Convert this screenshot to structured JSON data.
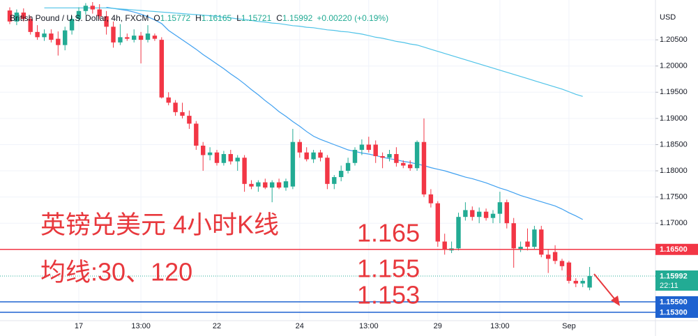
{
  "chart_data": {
    "type": "candlestick",
    "symbol": "British Pound / U.S. Dollar, 4h, FXCM",
    "ohlc_header_labels": [
      "O",
      "H",
      "L",
      "C"
    ],
    "change": "+0.00220 (+0.19%)",
    "currency": "USD",
    "categories": [
      null,
      null,
      null,
      null,
      null,
      null,
      null,
      null,
      null,
      null,
      "17",
      null,
      null,
      null,
      null,
      null,
      null,
      null,
      null,
      "13:00",
      null,
      null,
      null,
      null,
      null,
      null,
      null,
      null,
      null,
      null,
      "22",
      null,
      null,
      null,
      null,
      null,
      null,
      null,
      null,
      null,
      null,
      null,
      "24",
      null,
      null,
      null,
      null,
      null,
      null,
      null,
      null,
      null,
      "13:00",
      null,
      null,
      null,
      null,
      null,
      null,
      null,
      null,
      null,
      "29",
      null,
      null,
      null,
      null,
      null,
      null,
      null,
      null,
      "13:00",
      null,
      null,
      null,
      null,
      null,
      null,
      null,
      null,
      null,
      "Sep",
      null,
      null,
      null
    ],
    "ohlc": [
      [
        1.2106,
        1.2112,
        1.208,
        1.2085
      ],
      [
        1.2085,
        1.2108,
        1.2078,
        1.2102
      ],
      [
        1.2102,
        1.211,
        1.2085,
        1.209
      ],
      [
        1.209,
        1.2095,
        1.206,
        1.2065
      ],
      [
        1.2065,
        1.2078,
        1.205,
        1.2055
      ],
      [
        1.2055,
        1.207,
        1.2048,
        1.2062
      ],
      [
        1.2062,
        1.207,
        1.2045,
        1.205
      ],
      [
        1.2052,
        1.2066,
        1.202,
        1.204
      ],
      [
        1.204,
        1.2075,
        1.203,
        1.2068
      ],
      [
        1.2068,
        1.2095,
        1.206,
        1.209
      ],
      [
        1.209,
        1.2112,
        1.2085,
        1.2105
      ],
      [
        1.2105,
        1.212,
        1.2098,
        1.2115
      ],
      [
        1.2115,
        1.2122,
        1.21,
        1.2108
      ],
      [
        1.2108,
        1.2118,
        1.209,
        1.2095
      ],
      [
        1.2095,
        1.2105,
        1.206,
        1.2075
      ],
      [
        1.2075,
        1.2085,
        1.2035,
        1.2045
      ],
      [
        1.2045,
        1.208,
        1.204,
        1.2055
      ],
      [
        1.2055,
        1.2062,
        1.2048,
        1.2052
      ],
      [
        1.205,
        1.207,
        1.2045,
        1.2058
      ],
      [
        1.2058,
        1.2065,
        1.2005,
        1.205
      ],
      [
        1.205,
        1.2078,
        1.2045,
        1.2062
      ],
      [
        1.2058,
        1.2062,
        1.2048,
        1.2052
      ],
      [
        1.205,
        1.2055,
        1.1938,
        1.194
      ],
      [
        1.194,
        1.195,
        1.1925,
        1.193
      ],
      [
        1.193,
        1.1935,
        1.1905,
        1.1912
      ],
      [
        1.1912,
        1.193,
        1.19,
        1.1905
      ],
      [
        1.1905,
        1.1915,
        1.188,
        1.189
      ],
      [
        1.189,
        1.1895,
        1.184,
        1.1848
      ],
      [
        1.1848,
        1.1855,
        1.18,
        1.183
      ],
      [
        1.183,
        1.1845,
        1.182,
        1.1835
      ],
      [
        1.1835,
        1.184,
        1.181,
        1.1815
      ],
      [
        1.1815,
        1.1838,
        1.181,
        1.1832
      ],
      [
        1.1832,
        1.184,
        1.1812,
        1.1818
      ],
      [
        1.1818,
        1.183,
        1.18,
        1.1825
      ],
      [
        1.1825,
        1.183,
        1.176,
        1.1775
      ],
      [
        1.1775,
        1.1782,
        1.1765,
        1.177
      ],
      [
        1.177,
        1.1782,
        1.176,
        1.1778
      ],
      [
        1.1778,
        1.1785,
        1.1765,
        1.1768
      ],
      [
        1.1768,
        1.1782,
        1.174,
        1.1778
      ],
      [
        1.1778,
        1.1785,
        1.1765,
        1.1768
      ],
      [
        1.1768,
        1.1785,
        1.1762,
        1.178
      ],
      [
        1.177,
        1.188,
        1.1765,
        1.1855
      ],
      [
        1.1855,
        1.186,
        1.1825,
        1.1835
      ],
      [
        1.1835,
        1.1845,
        1.1818,
        1.1822
      ],
      [
        1.1822,
        1.184,
        1.1815,
        1.1835
      ],
      [
        1.1835,
        1.184,
        1.1818,
        1.1825
      ],
      [
        1.1825,
        1.183,
        1.1765,
        1.1775
      ],
      [
        1.1775,
        1.1792,
        1.1765,
        1.1788
      ],
      [
        1.1788,
        1.181,
        1.178,
        1.18
      ],
      [
        1.18,
        1.1825,
        1.1795,
        1.1815
      ],
      [
        1.1815,
        1.1845,
        1.181,
        1.184
      ],
      [
        1.184,
        1.186,
        1.183,
        1.185
      ],
      [
        1.185,
        1.1865,
        1.1835,
        1.184
      ],
      [
        1.185,
        1.1858,
        1.1815,
        1.1828
      ],
      [
        1.1828,
        1.1835,
        1.1805,
        1.1825
      ],
      [
        1.1825,
        1.184,
        1.1818,
        1.1832
      ],
      [
        1.1832,
        1.1845,
        1.1808,
        1.1815
      ],
      [
        1.1815,
        1.182,
        1.1805,
        1.181
      ],
      [
        1.1812,
        1.182,
        1.18,
        1.1805
      ],
      [
        1.1805,
        1.1858,
        1.18,
        1.1855
      ],
      [
        1.1855,
        1.19,
        1.175,
        1.1755
      ],
      [
        1.1755,
        1.1765,
        1.173,
        1.1738
      ],
      [
        1.1738,
        1.1742,
        1.1655,
        1.1665
      ],
      [
        1.1665,
        1.168,
        1.164,
        1.165
      ],
      [
        1.1648,
        1.1665,
        1.1643,
        1.1652
      ],
      [
        1.1652,
        1.172,
        1.1648,
        1.1712
      ],
      [
        1.1712,
        1.174,
        1.1705,
        1.1725
      ],
      [
        1.1725,
        1.1732,
        1.1705,
        1.1712
      ],
      [
        1.1712,
        1.173,
        1.17,
        1.1722
      ],
      [
        1.1722,
        1.1728,
        1.1705,
        1.171
      ],
      [
        1.171,
        1.1725,
        1.17,
        1.1718
      ],
      [
        1.1718,
        1.176,
        1.17,
        1.174
      ],
      [
        1.174,
        1.1745,
        1.169,
        1.17
      ],
      [
        1.17,
        1.171,
        1.1615,
        1.1652
      ],
      [
        1.165,
        1.1665,
        1.1645,
        1.1655
      ],
      [
        1.1665,
        1.169,
        1.1648,
        1.1655
      ],
      [
        1.1655,
        1.1695,
        1.165,
        1.1688
      ],
      [
        1.1688,
        1.1695,
        1.1635,
        1.164
      ],
      [
        1.164,
        1.165,
        1.1605,
        1.1632
      ],
      [
        1.1645,
        1.1658,
        1.1622,
        1.1628
      ],
      [
        1.1628,
        1.1632,
        1.161,
        1.1618
      ],
      [
        1.1625,
        1.1628,
        1.1585,
        1.159
      ],
      [
        1.159,
        1.1595,
        1.1578,
        1.1585
      ],
      [
        1.1585,
        1.1595,
        1.1578,
        1.159
      ],
      [
        1.15772,
        1.16165,
        1.15721,
        1.15992
      ]
    ],
    "up_color": "#22ab94",
    "down_color": "#f23645",
    "series": [
      {
        "color": "#3fa0f0",
        "values": [
          null,
          null,
          null,
          null,
          null,
          null,
          null,
          null,
          null,
          null,
          null,
          null,
          null,
          null,
          1.2112,
          1.211,
          1.2108,
          1.2106,
          1.2103,
          1.2099,
          1.2094,
          1.2088,
          1.2081,
          1.2068,
          1.2059,
          1.205,
          1.2041,
          1.2032,
          1.2022,
          1.2013,
          1.2004,
          1.1995,
          1.1985,
          1.1976,
          1.1966,
          1.1955,
          1.1945,
          1.1934,
          1.1924,
          1.1913,
          1.1904,
          1.1894,
          1.1885,
          1.1875,
          1.1866,
          1.186,
          1.1855,
          1.185,
          1.1845,
          1.184,
          1.1837,
          1.1834,
          1.1832,
          1.1829,
          1.1826,
          1.1823,
          1.1821,
          1.1818,
          1.1816,
          1.1813,
          1.181,
          1.1806,
          1.1803,
          1.18,
          1.1796,
          1.1792,
          1.1788,
          1.1785,
          1.1781,
          1.1777,
          1.1772,
          1.1767,
          1.1763,
          1.1758,
          1.1753,
          1.1749,
          1.1745,
          1.1741,
          1.1737,
          1.1733,
          1.1727,
          1.172,
          1.1714,
          1.1707,
          null
        ]
      },
      {
        "color": "#4fc3e8",
        "values": [
          null,
          null,
          null,
          null,
          null,
          1.2111,
          1.2111,
          1.2111,
          1.2111,
          1.2111,
          1.2111,
          1.2111,
          1.2111,
          1.2111,
          1.2111,
          1.211,
          1.2109,
          1.2108,
          1.2107,
          1.2106,
          1.2105,
          1.2104,
          1.2103,
          1.2102,
          1.2101,
          1.21,
          1.2099,
          1.2098,
          1.2097,
          1.2096,
          1.2095,
          1.2093,
          1.2092,
          1.209,
          1.2089,
          1.2087,
          1.2085,
          1.2084,
          1.2082,
          1.2081,
          1.2079,
          1.2077,
          1.2076,
          1.2074,
          1.2073,
          1.2071,
          1.2069,
          1.2068,
          1.2066,
          1.2065,
          1.2063,
          1.2061,
          1.2058,
          1.2055,
          1.2053,
          1.205,
          1.2047,
          1.2045,
          1.2042,
          1.204,
          1.2036,
          1.2032,
          1.2028,
          1.2024,
          1.202,
          1.2016,
          1.2012,
          1.2008,
          1.2004,
          1.2,
          1.1996,
          1.1992,
          1.1988,
          1.1984,
          1.198,
          1.1976,
          1.1972,
          1.1968,
          1.1964,
          1.196,
          1.1956,
          1.1951,
          1.1946,
          1.1942,
          null
        ]
      }
    ],
    "ylim": [
      1.1514,
      1.2126
    ],
    "yticks": [
      {
        "value": 1.205,
        "label": "1.20500"
      },
      {
        "value": 1.2,
        "label": "1.20000"
      },
      {
        "value": 1.195,
        "label": "1.19500"
      },
      {
        "value": 1.19,
        "label": "1.19000"
      },
      {
        "value": 1.185,
        "label": "1.18500"
      },
      {
        "value": 1.18,
        "label": "1.18000"
      },
      {
        "value": 1.175,
        "label": "1.17500"
      },
      {
        "value": 1.17,
        "label": "1.17000"
      }
    ],
    "grid": true,
    "levels": [
      {
        "value": 1.165,
        "label": "1.16500",
        "color": "#f23645"
      },
      {
        "value": 1.155,
        "label": "1.15500",
        "color": "#1e62d0"
      },
      {
        "value": 1.153,
        "label": "1.15300",
        "color": "#1e62d0"
      }
    ],
    "last_price": {
      "value": 1.15992,
      "label": "1.15992"
    },
    "countdown": "22:11",
    "annotations": [
      "英镑兑美元 4小时K线",
      "均线:30、120",
      "1.165",
      "1.155",
      "1.153"
    ]
  }
}
